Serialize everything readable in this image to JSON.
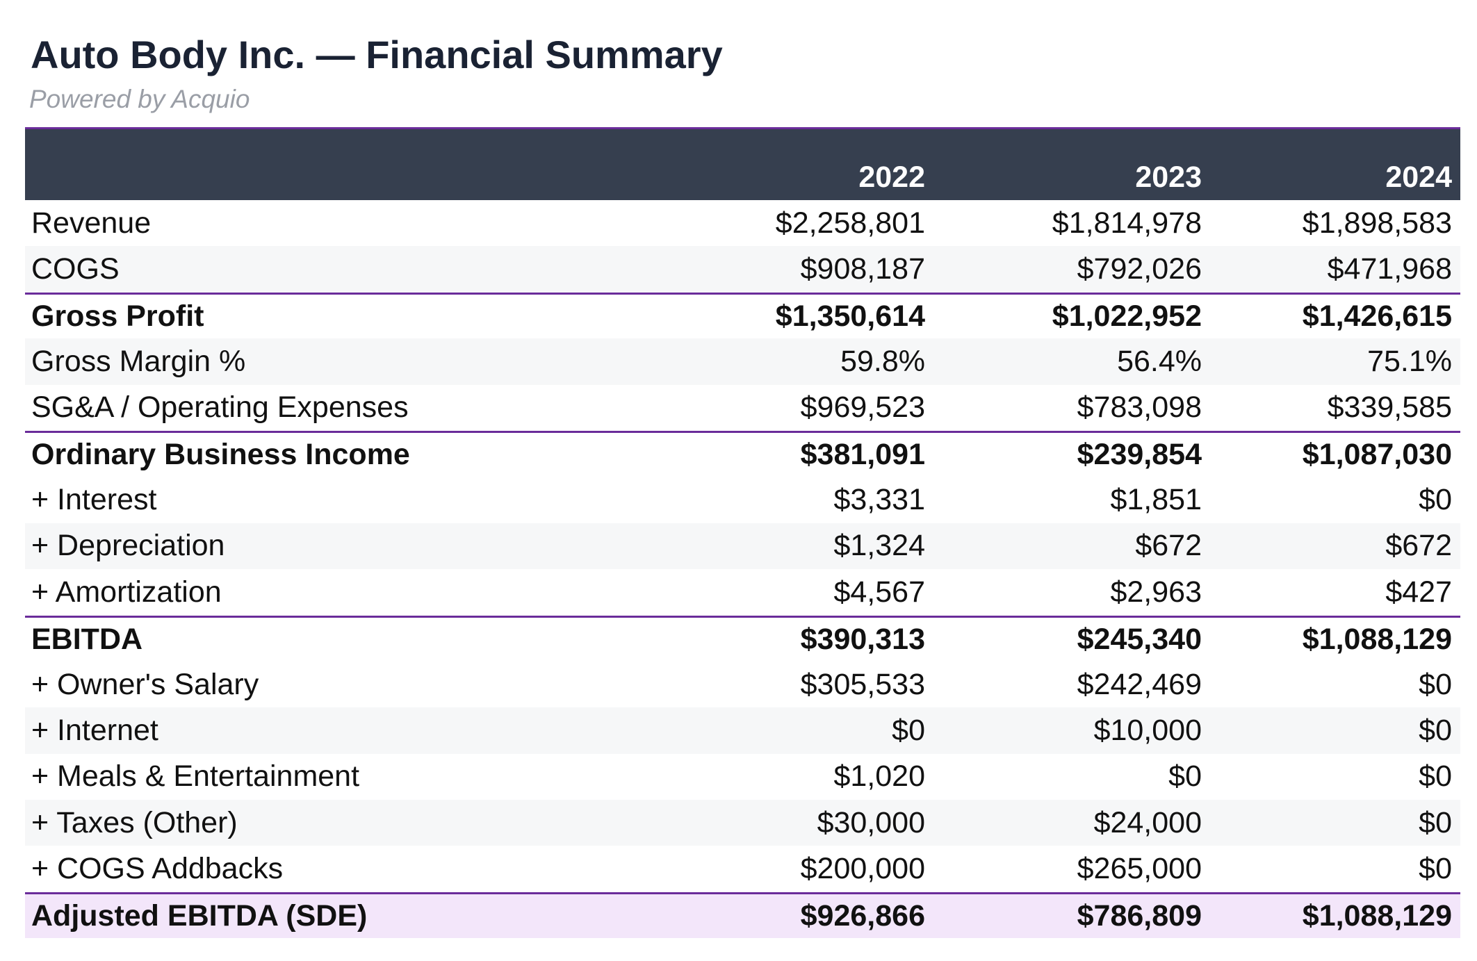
{
  "title": "Auto Body Inc. — Financial Summary",
  "subtitle": "Powered by Acquio",
  "colors": {
    "header_bg": "#363f4f",
    "rule": "#6a2c9a",
    "alt_row": "#f6f7f8",
    "adjusted_bg": "#f3e6fa",
    "title_text": "#1a2233",
    "subtitle_text": "#9a9ea6"
  },
  "table": {
    "columns": [
      "",
      "2022",
      "2023",
      "2024"
    ],
    "rows": [
      {
        "label": "Revenue",
        "values": [
          "$2,258,801",
          "$1,814,978",
          "$1,898,583"
        ]
      },
      {
        "label": "COGS",
        "values": [
          "$908,187",
          "$792,026",
          "$471,968"
        ]
      },
      {
        "label": "Gross Profit",
        "values": [
          "$1,350,614",
          "$1,022,952",
          "$1,426,615"
        ]
      },
      {
        "label": "Gross Margin %",
        "values": [
          "59.8%",
          "56.4%",
          "75.1%"
        ]
      },
      {
        "label": "SG&A / Operating Expenses",
        "values": [
          "$969,523",
          "$783,098",
          "$339,585"
        ]
      },
      {
        "label": "Ordinary Business Income",
        "values": [
          "$381,091",
          "$239,854",
          "$1,087,030"
        ]
      },
      {
        "label": "+ Interest",
        "values": [
          "$3,331",
          "$1,851",
          "$0"
        ]
      },
      {
        "label": "+ Depreciation",
        "values": [
          "$1,324",
          "$672",
          "$672"
        ]
      },
      {
        "label": "+ Amortization",
        "values": [
          "$4,567",
          "$2,963",
          "$427"
        ]
      },
      {
        "label": "EBITDA",
        "values": [
          "$390,313",
          "$245,340",
          "$1,088,129"
        ]
      },
      {
        "label": "+ Owner's Salary",
        "values": [
          "$305,533",
          "$242,469",
          "$0"
        ]
      },
      {
        "label": "+ Internet",
        "values": [
          "$0",
          "$10,000",
          "$0"
        ]
      },
      {
        "label": "+ Meals & Entertainment",
        "values": [
          "$1,020",
          "$0",
          "$0"
        ]
      },
      {
        "label": "+ Taxes (Other)",
        "values": [
          "$30,000",
          "$24,000",
          "$0"
        ]
      },
      {
        "label": "+ COGS Addbacks",
        "values": [
          "$200,000",
          "$265,000",
          "$0"
        ]
      },
      {
        "label": "Adjusted EBITDA (SDE)",
        "values": [
          "$926,866",
          "$786,809",
          "$1,088,129"
        ]
      }
    ]
  }
}
